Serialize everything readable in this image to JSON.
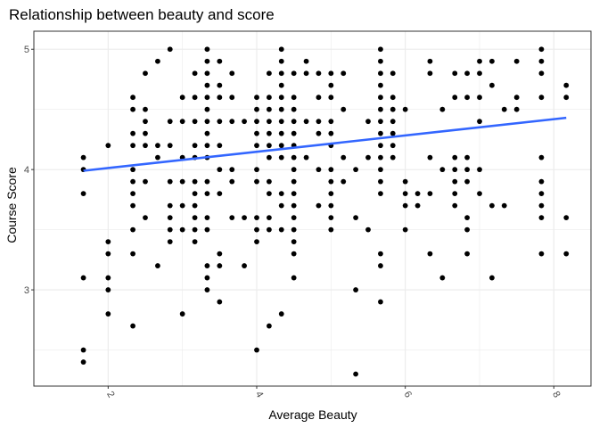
{
  "chart_data": {
    "type": "scatter",
    "title": "Relationship between beauty and score",
    "xlabel": "Average Beauty",
    "ylabel": "Course Score",
    "xlim": [
      1.0,
      8.5
    ],
    "ylim": [
      2.2,
      5.15
    ],
    "x_ticks": [
      2,
      4,
      6,
      8
    ],
    "y_ticks": [
      3,
      4,
      5
    ],
    "x_minor": [
      3,
      5,
      7
    ],
    "y_minor": [
      2.5,
      3.5,
      4.5
    ],
    "grid": true,
    "colors": {
      "points": "#000000",
      "trend": "#3366ff",
      "grid": "#ebebeb",
      "border": "#333333"
    },
    "trend_line": {
      "x": [
        1.667,
        8.167
      ],
      "y": [
        3.99,
        4.43
      ]
    },
    "points": [
      [
        1.667,
        4.1
      ],
      [
        1.667,
        4.0
      ],
      [
        1.667,
        3.8
      ],
      [
        1.667,
        3.1
      ],
      [
        1.667,
        2.5
      ],
      [
        1.667,
        2.4
      ],
      [
        2.0,
        4.2
      ],
      [
        2.0,
        3.4
      ],
      [
        2.0,
        3.3
      ],
      [
        2.0,
        3.1
      ],
      [
        2.0,
        3.0
      ],
      [
        2.0,
        2.8
      ],
      [
        2.333,
        4.6
      ],
      [
        2.333,
        4.5
      ],
      [
        2.333,
        4.3
      ],
      [
        2.333,
        4.2
      ],
      [
        2.333,
        4.0
      ],
      [
        2.333,
        3.9
      ],
      [
        2.333,
        3.8
      ],
      [
        2.333,
        3.7
      ],
      [
        2.333,
        3.5
      ],
      [
        2.333,
        3.3
      ],
      [
        2.333,
        2.7
      ],
      [
        2.5,
        4.8
      ],
      [
        2.5,
        4.5
      ],
      [
        2.5,
        4.4
      ],
      [
        2.5,
        4.3
      ],
      [
        2.5,
        4.2
      ],
      [
        2.5,
        3.9
      ],
      [
        2.5,
        3.6
      ],
      [
        2.667,
        4.9
      ],
      [
        2.667,
        4.2
      ],
      [
        2.667,
        4.1
      ],
      [
        2.667,
        3.2
      ],
      [
        2.833,
        5.0
      ],
      [
        2.833,
        4.4
      ],
      [
        2.833,
        4.2
      ],
      [
        2.833,
        3.9
      ],
      [
        2.833,
        3.7
      ],
      [
        2.833,
        3.6
      ],
      [
        2.833,
        3.5
      ],
      [
        2.833,
        3.4
      ],
      [
        3.0,
        4.6
      ],
      [
        3.0,
        4.4
      ],
      [
        3.0,
        4.1
      ],
      [
        3.0,
        3.9
      ],
      [
        3.0,
        3.7
      ],
      [
        3.0,
        3.5
      ],
      [
        3.0,
        2.8
      ],
      [
        3.167,
        4.8
      ],
      [
        3.167,
        4.6
      ],
      [
        3.167,
        4.4
      ],
      [
        3.167,
        4.2
      ],
      [
        3.167,
        4.1
      ],
      [
        3.167,
        3.9
      ],
      [
        3.167,
        3.8
      ],
      [
        3.167,
        3.7
      ],
      [
        3.167,
        3.6
      ],
      [
        3.167,
        3.5
      ],
      [
        3.167,
        3.4
      ],
      [
        3.333,
        5.0
      ],
      [
        3.333,
        4.9
      ],
      [
        3.333,
        4.8
      ],
      [
        3.333,
        4.7
      ],
      [
        3.333,
        4.6
      ],
      [
        3.333,
        4.5
      ],
      [
        3.333,
        4.4
      ],
      [
        3.333,
        4.3
      ],
      [
        3.333,
        4.2
      ],
      [
        3.333,
        4.1
      ],
      [
        3.333,
        3.9
      ],
      [
        3.333,
        3.8
      ],
      [
        3.333,
        3.6
      ],
      [
        3.333,
        3.5
      ],
      [
        3.333,
        3.2
      ],
      [
        3.333,
        3.1
      ],
      [
        3.333,
        3.0
      ],
      [
        3.5,
        4.9
      ],
      [
        3.5,
        4.7
      ],
      [
        3.5,
        4.6
      ],
      [
        3.5,
        4.4
      ],
      [
        3.5,
        4.2
      ],
      [
        3.5,
        4.0
      ],
      [
        3.5,
        3.8
      ],
      [
        3.5,
        3.3
      ],
      [
        3.5,
        3.2
      ],
      [
        3.5,
        2.9
      ],
      [
        3.667,
        4.8
      ],
      [
        3.667,
        4.6
      ],
      [
        3.667,
        4.4
      ],
      [
        3.667,
        4.0
      ],
      [
        3.667,
        3.9
      ],
      [
        3.667,
        3.6
      ],
      [
        3.833,
        4.4
      ],
      [
        3.833,
        3.6
      ],
      [
        3.833,
        3.2
      ],
      [
        4.0,
        4.6
      ],
      [
        4.0,
        4.5
      ],
      [
        4.0,
        4.4
      ],
      [
        4.0,
        4.3
      ],
      [
        4.0,
        4.2
      ],
      [
        4.0,
        4.0
      ],
      [
        4.0,
        3.9
      ],
      [
        4.0,
        3.6
      ],
      [
        4.0,
        3.5
      ],
      [
        4.0,
        3.4
      ],
      [
        4.0,
        2.5
      ],
      [
        4.167,
        4.8
      ],
      [
        4.167,
        4.6
      ],
      [
        4.167,
        4.5
      ],
      [
        4.167,
        4.4
      ],
      [
        4.167,
        4.3
      ],
      [
        4.167,
        4.2
      ],
      [
        4.167,
        4.1
      ],
      [
        4.167,
        3.9
      ],
      [
        4.167,
        3.8
      ],
      [
        4.167,
        3.6
      ],
      [
        4.167,
        3.5
      ],
      [
        4.167,
        2.7
      ],
      [
        4.333,
        5.0
      ],
      [
        4.333,
        4.9
      ],
      [
        4.333,
        4.8
      ],
      [
        4.333,
        4.7
      ],
      [
        4.333,
        4.6
      ],
      [
        4.333,
        4.5
      ],
      [
        4.333,
        4.4
      ],
      [
        4.333,
        4.3
      ],
      [
        4.333,
        4.2
      ],
      [
        4.333,
        4.1
      ],
      [
        4.333,
        3.8
      ],
      [
        4.333,
        3.7
      ],
      [
        4.333,
        3.5
      ],
      [
        4.333,
        2.8
      ],
      [
        4.5,
        4.8
      ],
      [
        4.5,
        4.6
      ],
      [
        4.5,
        4.5
      ],
      [
        4.5,
        4.4
      ],
      [
        4.5,
        4.3
      ],
      [
        4.5,
        4.2
      ],
      [
        4.5,
        4.1
      ],
      [
        4.5,
        4.0
      ],
      [
        4.5,
        3.9
      ],
      [
        4.5,
        3.8
      ],
      [
        4.5,
        3.7
      ],
      [
        4.5,
        3.6
      ],
      [
        4.5,
        3.5
      ],
      [
        4.5,
        3.4
      ],
      [
        4.5,
        3.3
      ],
      [
        4.5,
        3.1
      ],
      [
        4.667,
        4.9
      ],
      [
        4.667,
        4.8
      ],
      [
        4.667,
        4.4
      ],
      [
        4.667,
        4.1
      ],
      [
        4.833,
        4.8
      ],
      [
        4.833,
        4.6
      ],
      [
        4.833,
        4.4
      ],
      [
        4.833,
        4.3
      ],
      [
        4.833,
        4.0
      ],
      [
        4.833,
        3.7
      ],
      [
        5.0,
        4.8
      ],
      [
        5.0,
        4.7
      ],
      [
        5.0,
        4.6
      ],
      [
        5.0,
        4.4
      ],
      [
        5.0,
        4.3
      ],
      [
        5.0,
        4.2
      ],
      [
        5.0,
        4.0
      ],
      [
        5.0,
        3.9
      ],
      [
        5.0,
        3.8
      ],
      [
        5.0,
        3.7
      ],
      [
        5.0,
        3.6
      ],
      [
        5.0,
        3.5
      ],
      [
        5.167,
        4.8
      ],
      [
        5.167,
        4.5
      ],
      [
        5.167,
        4.1
      ],
      [
        5.167,
        3.9
      ],
      [
        5.333,
        4.0
      ],
      [
        5.333,
        3.6
      ],
      [
        5.333,
        3.0
      ],
      [
        5.333,
        2.3
      ],
      [
        5.5,
        4.4
      ],
      [
        5.5,
        4.1
      ],
      [
        5.5,
        3.5
      ],
      [
        5.667,
        5.0
      ],
      [
        5.667,
        4.9
      ],
      [
        5.667,
        4.8
      ],
      [
        5.667,
        4.7
      ],
      [
        5.667,
        4.6
      ],
      [
        5.667,
        4.5
      ],
      [
        5.667,
        4.4
      ],
      [
        5.667,
        4.3
      ],
      [
        5.667,
        4.2
      ],
      [
        5.667,
        4.1
      ],
      [
        5.667,
        4.0
      ],
      [
        5.667,
        3.9
      ],
      [
        5.667,
        3.8
      ],
      [
        5.667,
        3.3
      ],
      [
        5.667,
        3.2
      ],
      [
        5.667,
        2.9
      ],
      [
        5.833,
        4.8
      ],
      [
        5.833,
        4.6
      ],
      [
        5.833,
        4.5
      ],
      [
        5.833,
        4.4
      ],
      [
        5.833,
        4.3
      ],
      [
        5.833,
        4.2
      ],
      [
        5.833,
        4.1
      ],
      [
        6.0,
        4.5
      ],
      [
        6.0,
        3.9
      ],
      [
        6.0,
        3.8
      ],
      [
        6.0,
        3.7
      ],
      [
        6.0,
        3.5
      ],
      [
        6.167,
        3.8
      ],
      [
        6.167,
        3.7
      ],
      [
        6.333,
        4.9
      ],
      [
        6.333,
        4.8
      ],
      [
        6.333,
        4.1
      ],
      [
        6.333,
        3.8
      ],
      [
        6.333,
        3.3
      ],
      [
        6.5,
        4.5
      ],
      [
        6.5,
        4.0
      ],
      [
        6.5,
        3.1
      ],
      [
        6.667,
        4.8
      ],
      [
        6.667,
        4.6
      ],
      [
        6.667,
        4.1
      ],
      [
        6.667,
        4.0
      ],
      [
        6.667,
        3.9
      ],
      [
        6.667,
        3.8
      ],
      [
        6.667,
        3.7
      ],
      [
        6.833,
        4.8
      ],
      [
        6.833,
        4.6
      ],
      [
        6.833,
        4.1
      ],
      [
        6.833,
        4.0
      ],
      [
        6.833,
        3.9
      ],
      [
        6.833,
        3.6
      ],
      [
        6.833,
        3.5
      ],
      [
        6.833,
        3.3
      ],
      [
        7.0,
        4.9
      ],
      [
        7.0,
        4.8
      ],
      [
        7.0,
        4.6
      ],
      [
        7.0,
        4.4
      ],
      [
        7.0,
        4.0
      ],
      [
        7.0,
        3.8
      ],
      [
        7.167,
        4.9
      ],
      [
        7.167,
        4.7
      ],
      [
        7.167,
        3.7
      ],
      [
        7.167,
        3.1
      ],
      [
        7.333,
        4.5
      ],
      [
        7.333,
        3.7
      ],
      [
        7.5,
        4.9
      ],
      [
        7.5,
        4.6
      ],
      [
        7.5,
        4.5
      ],
      [
        7.833,
        5.0
      ],
      [
        7.833,
        4.9
      ],
      [
        7.833,
        4.8
      ],
      [
        7.833,
        4.6
      ],
      [
        7.833,
        4.1
      ],
      [
        7.833,
        3.9
      ],
      [
        7.833,
        3.8
      ],
      [
        7.833,
        3.7
      ],
      [
        7.833,
        3.6
      ],
      [
        7.833,
        3.3
      ],
      [
        8.167,
        4.7
      ],
      [
        8.167,
        4.6
      ],
      [
        8.167,
        3.6
      ],
      [
        8.167,
        3.3
      ]
    ]
  }
}
